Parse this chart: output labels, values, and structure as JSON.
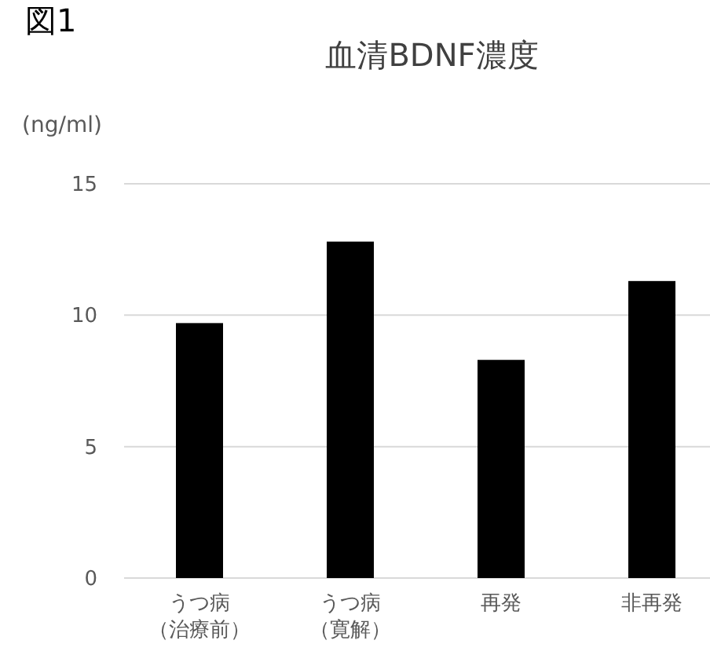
{
  "chart_data": {
    "type": "bar",
    "title": "血清BDNF濃度",
    "ylabel": "(ng/ml)",
    "annotations": [
      "図1"
    ],
    "categories": [
      "うつ病（治療前）",
      "うつ病（寛解）",
      "再発",
      "非再発"
    ],
    "values": [
      9.7,
      12.8,
      8.3,
      11.3
    ],
    "color": "#000000",
    "ylim": [
      0,
      15
    ],
    "yticks": [
      0,
      5,
      10,
      15
    ],
    "grid": "y"
  }
}
